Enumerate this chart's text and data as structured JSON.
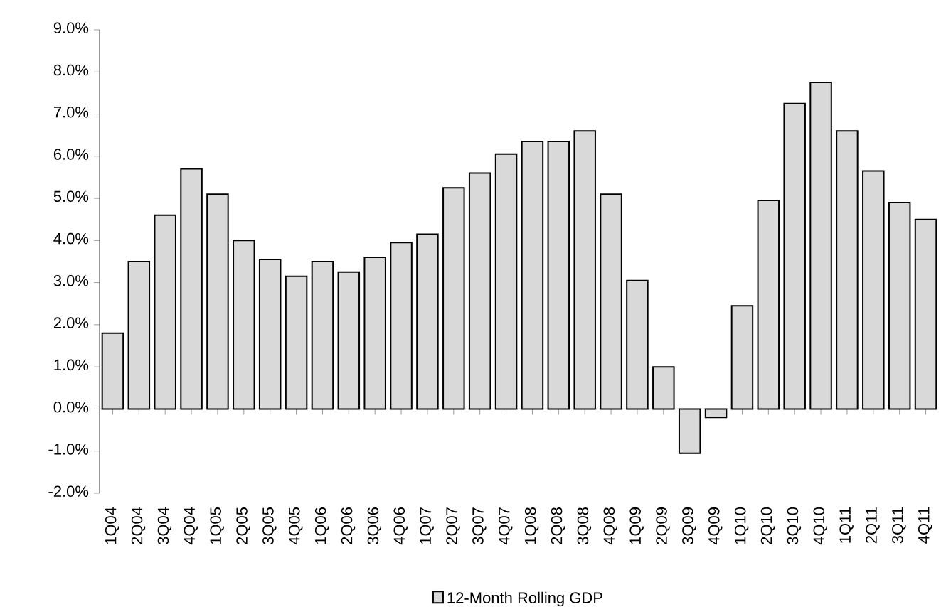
{
  "chart_data": {
    "type": "bar",
    "categories": [
      "1Q04",
      "2Q04",
      "3Q04",
      "4Q04",
      "1Q05",
      "2Q05",
      "3Q05",
      "4Q05",
      "1Q06",
      "2Q06",
      "3Q06",
      "4Q06",
      "1Q07",
      "2Q07",
      "3Q07",
      "4Q07",
      "1Q08",
      "2Q08",
      "3Q08",
      "4Q08",
      "1Q09",
      "2Q09",
      "3Q09",
      "4Q09",
      "1Q10",
      "2Q10",
      "3Q10",
      "4Q10",
      "1Q11",
      "2Q11",
      "3Q11",
      "4Q11"
    ],
    "series": [
      {
        "name": "12-Month Rolling GDP",
        "color": "#d9d9d9",
        "values": [
          1.8,
          3.5,
          4.6,
          5.7,
          5.1,
          4.0,
          3.55,
          3.15,
          3.5,
          3.25,
          3.6,
          3.95,
          4.15,
          5.25,
          5.6,
          6.05,
          6.35,
          6.35,
          6.6,
          5.1,
          3.05,
          1.0,
          -1.05,
          -0.2,
          2.45,
          4.95,
          7.25,
          7.75,
          6.6,
          5.65,
          4.9,
          4.5
        ]
      }
    ],
    "ylim": [
      -2,
      9
    ],
    "yticks": [
      {
        "value": -2,
        "label": "-2.0%"
      },
      {
        "value": -1,
        "label": "-1.0%"
      },
      {
        "value": 0,
        "label": "0.0%"
      },
      {
        "value": 1,
        "label": "1.0%"
      },
      {
        "value": 2,
        "label": "2.0%"
      },
      {
        "value": 3,
        "label": "3.0%"
      },
      {
        "value": 4,
        "label": "4.0%"
      },
      {
        "value": 5,
        "label": "5.0%"
      },
      {
        "value": 6,
        "label": "6.0%"
      },
      {
        "value": 7,
        "label": "7.0%"
      },
      {
        "value": 8,
        "label": "8.0%"
      },
      {
        "value": 9,
        "label": "9.0%"
      }
    ],
    "legend": "bottom"
  }
}
